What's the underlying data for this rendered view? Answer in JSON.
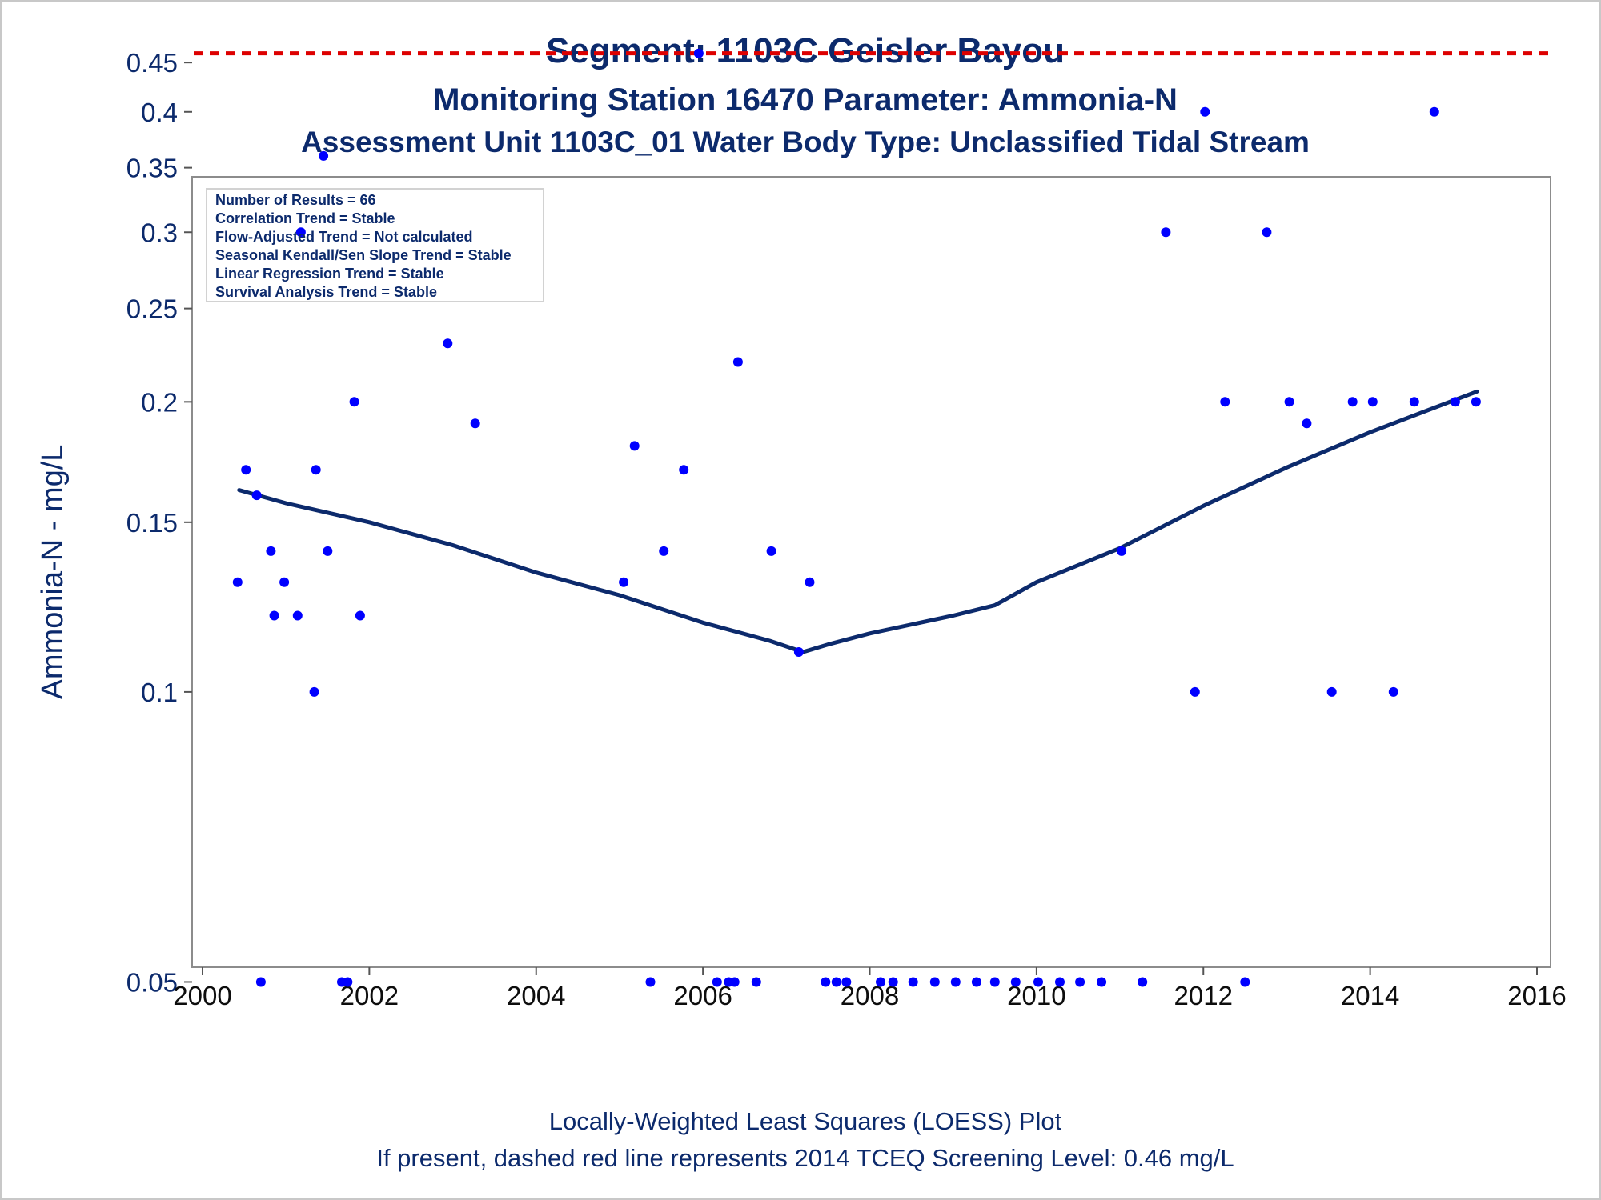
{
  "chart_data": {
    "type": "scatter",
    "title": "Segment: 1103C  Geisler Bayou",
    "subtitle": "Monitoring Station 16470 Parameter: Ammonia-N",
    "subtitle2": "Assessment Unit 1103C_01   Water Body Type: Unclassified Tidal Stream",
    "ylabel": "Ammonia-N - mg/L",
    "footnote1": "Locally-Weighted Least Squares (LOESS) Plot",
    "footnote2": "If present, dashed red line represents 2014 TCEQ Screening Level: 0.46 mg/L",
    "yscale": "log",
    "xlim": [
      2000,
      2016
    ],
    "ylim": [
      0.048,
      0.465
    ],
    "x_ticks": [
      2000,
      2002,
      2004,
      2006,
      2008,
      2010,
      2012,
      2014,
      2016
    ],
    "x_tick_labels": [
      "2000",
      "2002",
      "2004",
      "2006",
      "2008",
      "2010",
      "2012",
      "2014",
      "2016"
    ],
    "y_ticks": [
      0.05,
      0.1,
      0.15,
      0.2,
      0.25,
      0.3,
      0.35,
      0.4,
      0.45
    ],
    "y_tick_labels": [
      "0.05",
      "0.1",
      "0.15",
      "0.2",
      "0.25",
      "0.3",
      "0.35",
      "0.4",
      "0.45"
    ],
    "screening_level": 0.46,
    "grid": false,
    "colors": {
      "points": "#0000ff",
      "loess": "#0c2a6c",
      "screening": "#dd0000",
      "text": "#0c2a6c"
    },
    "stats_box": {
      "position": "top-left",
      "lines": [
        "Number of Results = 66",
        "Correlation Trend = Stable",
        "Flow-Adjusted Trend = Not calculated",
        "Seasonal Kendall/Sen Slope Trend = Stable",
        "Linear Regression Trend = Stable",
        "Survival Analysis Trend = Stable"
      ]
    },
    "points": [
      [
        2000.42,
        0.13
      ],
      [
        2000.52,
        0.17
      ],
      [
        2000.65,
        0.16
      ],
      [
        2000.7,
        0.05
      ],
      [
        2000.82,
        0.14
      ],
      [
        2000.86,
        0.12
      ],
      [
        2000.98,
        0.13
      ],
      [
        2001.14,
        0.12
      ],
      [
        2001.18,
        0.3
      ],
      [
        2001.34,
        0.1
      ],
      [
        2001.36,
        0.17
      ],
      [
        2001.45,
        0.36
      ],
      [
        2001.5,
        0.14
      ],
      [
        2001.67,
        0.05
      ],
      [
        2001.74,
        0.05
      ],
      [
        2001.82,
        0.2
      ],
      [
        2001.89,
        0.12
      ],
      [
        2002.94,
        0.23
      ],
      [
        2003.27,
        0.19
      ],
      [
        2005.05,
        0.13
      ],
      [
        2005.18,
        0.18
      ],
      [
        2005.37,
        0.05
      ],
      [
        2005.53,
        0.14
      ],
      [
        2005.77,
        0.17
      ],
      [
        2005.95,
        0.46
      ],
      [
        2006.17,
        0.05
      ],
      [
        2006.31,
        0.05
      ],
      [
        2006.38,
        0.05
      ],
      [
        2006.42,
        0.22
      ],
      [
        2006.64,
        0.05
      ],
      [
        2006.82,
        0.14
      ],
      [
        2007.15,
        0.11
      ],
      [
        2007.28,
        0.13
      ],
      [
        2007.47,
        0.05
      ],
      [
        2007.6,
        0.05
      ],
      [
        2007.72,
        0.05
      ],
      [
        2008.13,
        0.05
      ],
      [
        2008.28,
        0.05
      ],
      [
        2008.52,
        0.05
      ],
      [
        2008.78,
        0.05
      ],
      [
        2009.03,
        0.05
      ],
      [
        2009.28,
        0.05
      ],
      [
        2009.5,
        0.05
      ],
      [
        2009.75,
        0.05
      ],
      [
        2010.02,
        0.05
      ],
      [
        2010.28,
        0.05
      ],
      [
        2010.52,
        0.05
      ],
      [
        2010.78,
        0.05
      ],
      [
        2011.02,
        0.14
      ],
      [
        2011.27,
        0.05
      ],
      [
        2011.55,
        0.3
      ],
      [
        2011.9,
        0.1
      ],
      [
        2012.02,
        0.4
      ],
      [
        2012.5,
        0.05
      ],
      [
        2012.26,
        0.2
      ],
      [
        2012.76,
        0.3
      ],
      [
        2013.03,
        0.2
      ],
      [
        2013.24,
        0.19
      ],
      [
        2013.54,
        0.1
      ],
      [
        2013.79,
        0.2
      ],
      [
        2014.03,
        0.2
      ],
      [
        2014.28,
        0.1
      ],
      [
        2014.53,
        0.2
      ],
      [
        2014.77,
        0.4
      ],
      [
        2015.02,
        0.2
      ],
      [
        2015.27,
        0.2
      ]
    ],
    "loess": [
      [
        2000.44,
        0.162
      ],
      [
        2001.0,
        0.157
      ],
      [
        2002.0,
        0.15
      ],
      [
        2003.0,
        0.142
      ],
      [
        2004.0,
        0.133
      ],
      [
        2005.0,
        0.126
      ],
      [
        2006.0,
        0.118
      ],
      [
        2006.8,
        0.113
      ],
      [
        2007.2,
        0.11
      ],
      [
        2007.5,
        0.112
      ],
      [
        2008.0,
        0.115
      ],
      [
        2009.0,
        0.12
      ],
      [
        2009.5,
        0.123
      ],
      [
        2010.0,
        0.13
      ],
      [
        2011.0,
        0.141
      ],
      [
        2012.0,
        0.156
      ],
      [
        2013.0,
        0.171
      ],
      [
        2014.0,
        0.186
      ],
      [
        2015.28,
        0.205
      ]
    ]
  }
}
